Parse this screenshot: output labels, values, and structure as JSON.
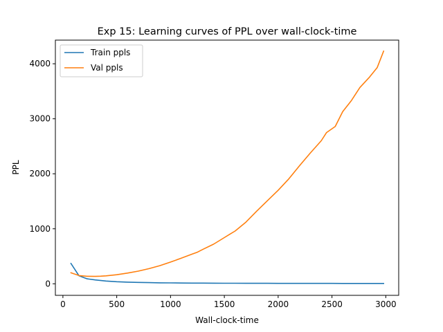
{
  "chart_data": {
    "type": "line",
    "title": "Exp 15: Learning curves of PPL over wall-clock-time",
    "xlabel": "Wall-clock-time",
    "ylabel": "PPL",
    "xlim": [
      -70,
      3120
    ],
    "ylim": [
      -210,
      4430
    ],
    "x_ticks": [
      0,
      500,
      1000,
      1500,
      2000,
      2500,
      3000
    ],
    "y_ticks": [
      0,
      1000,
      2000,
      3000,
      4000
    ],
    "x_tick_labels": [
      "0",
      "500",
      "1000",
      "1500",
      "2000",
      "2500",
      "3000"
    ],
    "y_tick_labels": [
      "0",
      "1000",
      "2000",
      "3000",
      "4000"
    ],
    "grid": false,
    "legend_position": "top-left",
    "series": [
      {
        "name": "Train ppls",
        "color": "#1f77b4",
        "x": [
          75,
          150,
          225,
          300,
          400,
          500,
          600,
          700,
          800,
          900,
          1000,
          1100,
          1200,
          1300,
          1400,
          1500,
          1600,
          1700,
          1800,
          1900,
          2000,
          2100,
          2200,
          2300,
          2400,
          2500,
          2600,
          2700,
          2800,
          2900,
          2980
        ],
        "y": [
          370,
          145,
          90,
          70,
          50,
          38,
          30,
          25,
          21,
          18,
          16,
          14,
          13,
          12,
          11,
          10,
          9.5,
          9,
          8.5,
          8.2,
          8,
          7.8,
          7.6,
          7.4,
          7.2,
          7,
          6.9,
          6.8,
          6.7,
          6.6,
          6.5
        ]
      },
      {
        "name": "Val ppls",
        "color": "#ff7f0e",
        "x": [
          75,
          150,
          225,
          300,
          350,
          400,
          500,
          600,
          700,
          800,
          900,
          1000,
          1100,
          1200,
          1250,
          1300,
          1400,
          1500,
          1550,
          1600,
          1700,
          1800,
          1900,
          2000,
          2100,
          2200,
          2300,
          2400,
          2450,
          2530,
          2600,
          2680,
          2760,
          2850,
          2920,
          2980
        ],
        "y": [
          200,
          150,
          137,
          135,
          138,
          145,
          165,
          195,
          230,
          275,
          330,
          395,
          465,
          540,
          575,
          625,
          720,
          840,
          900,
          960,
          1120,
          1320,
          1510,
          1700,
          1910,
          2150,
          2380,
          2600,
          2750,
          2860,
          3130,
          3330,
          3570,
          3760,
          3930,
          4230
        ]
      }
    ]
  }
}
